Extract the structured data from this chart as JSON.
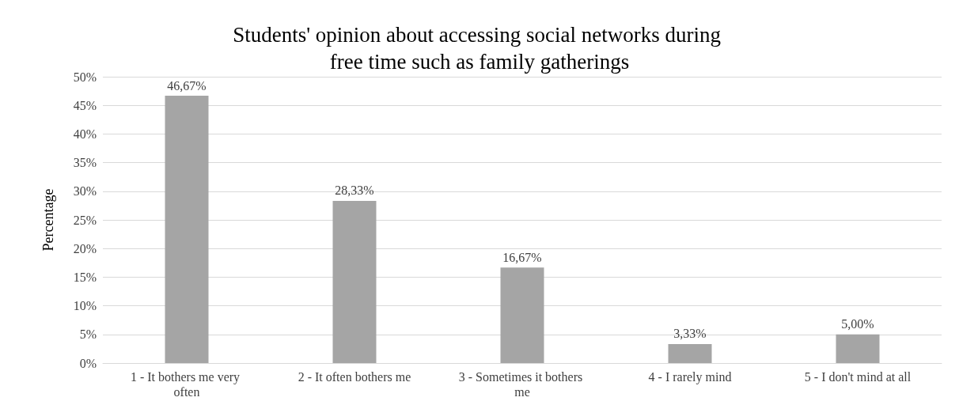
{
  "chart_data": {
    "type": "bar",
    "title": "Students' opinion about accessing social networks during free time such as family gatherings",
    "ylabel": "Percentage",
    "categories": [
      "1 - It bothers me very often",
      "2 - It often bothers me",
      "3 - Sometimes it bothers me",
      "4 - I rarely mind",
      "5 - I don't mind at all"
    ],
    "values": [
      46.67,
      28.33,
      16.67,
      3.33,
      5.0
    ],
    "value_labels": [
      "46,67%",
      "28,33%",
      "16,67%",
      "3,33%",
      "5,00%"
    ],
    "color": "#a5a5a5",
    "ylim": [
      0,
      50
    ],
    "yticks": [
      {
        "value": 0,
        "label": "0%"
      },
      {
        "value": 5,
        "label": "5%"
      },
      {
        "value": 10,
        "label": "10%"
      },
      {
        "value": 15,
        "label": "15%"
      },
      {
        "value": 20,
        "label": "20%"
      },
      {
        "value": 25,
        "label": "25%"
      },
      {
        "value": 30,
        "label": "30%"
      },
      {
        "value": 35,
        "label": "35%"
      },
      {
        "value": 40,
        "label": "40%"
      },
      {
        "value": 45,
        "label": "45%"
      },
      {
        "value": 50,
        "label": "50%"
      }
    ],
    "grid": "y"
  }
}
